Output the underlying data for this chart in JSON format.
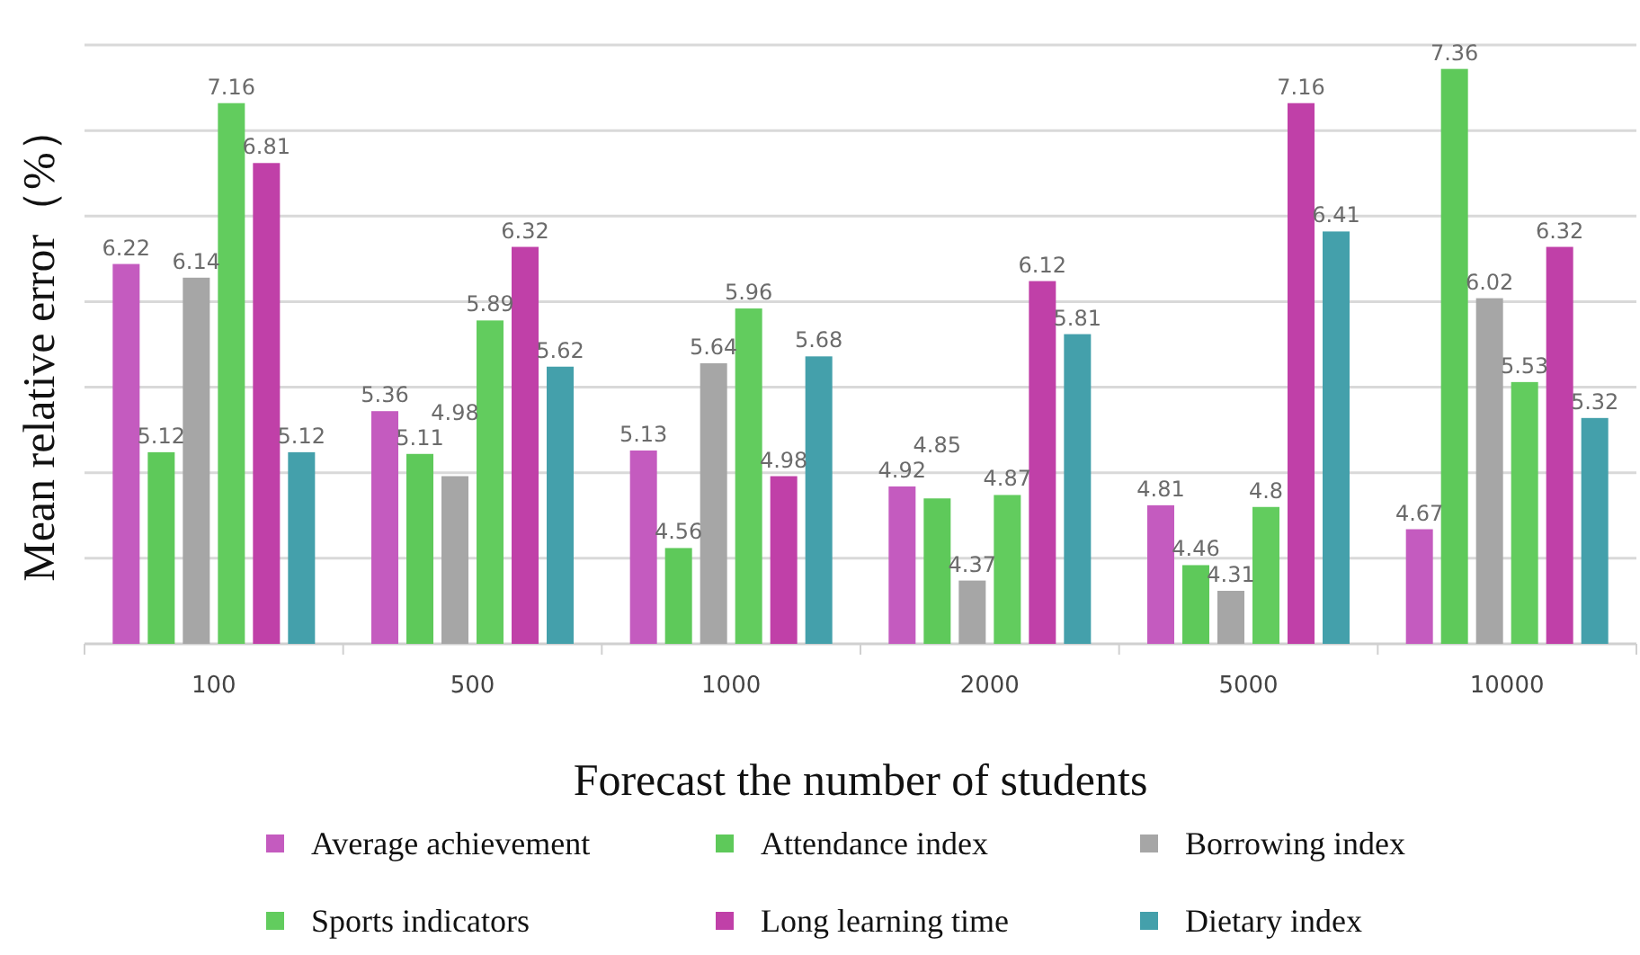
{
  "chart_data": {
    "type": "bar",
    "xlabel": "Forecast the number of students",
    "ylabel": "Mean relative error（%）",
    "categories": [
      "100",
      "500",
      "1000",
      "2000",
      "5000",
      "10000"
    ],
    "series": [
      {
        "name": "Average achievement",
        "color": "#c45bbf",
        "values": [
          6.22,
          5.36,
          5.13,
          4.92,
          4.81,
          4.67
        ]
      },
      {
        "name": "Attendance index",
        "color": "#5ec95a",
        "values": [
          5.12,
          5.11,
          4.56,
          4.85,
          4.46,
          7.36
        ]
      },
      {
        "name": "Borrowing index",
        "color": "#a6a6a6",
        "values": [
          6.14,
          4.98,
          5.64,
          4.37,
          4.31,
          6.02
        ]
      },
      {
        "name": "Sports indicators",
        "color": "#62cc5e",
        "values": [
          7.16,
          5.89,
          5.96,
          4.87,
          4.8,
          5.53
        ]
      },
      {
        "name": "Long learning time",
        "color": "#c040a8",
        "values": [
          6.81,
          6.32,
          4.98,
          6.12,
          7.16,
          6.32
        ]
      },
      {
        "name": "Dietary index",
        "color": "#44a0ab",
        "values": [
          5.12,
          5.62,
          5.68,
          5.81,
          6.41,
          5.32
        ]
      }
    ],
    "ylim": [
      4,
      7.5
    ],
    "yticks": [
      {
        "value": 4,
        "label": null
      },
      {
        "value": 4.5,
        "label": null
      },
      {
        "value": 5,
        "label": null
      },
      {
        "value": 5.5,
        "label": null
      },
      {
        "value": 6,
        "label": null
      },
      {
        "value": 6.5,
        "label": null
      },
      {
        "value": 7,
        "label": null
      },
      {
        "value": 7.5,
        "label": null
      }
    ],
    "tick_labels": "x",
    "grid": "y",
    "legend": "bottom",
    "data_labels": true
  }
}
